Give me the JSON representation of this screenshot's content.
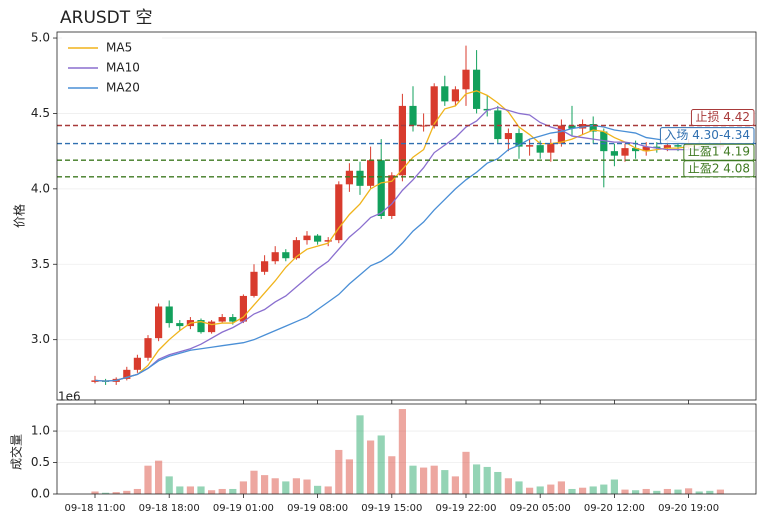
{
  "chart_data": {
    "type": "candlestick",
    "title": "ARUSDT  空",
    "ylabel": "价格",
    "categories": [
      "09-18 11:00",
      null,
      null,
      null,
      null,
      null,
      null,
      "09-18 18:00",
      null,
      null,
      null,
      null,
      null,
      null,
      "09-19 01:00",
      null,
      null,
      null,
      null,
      null,
      null,
      "09-19 08:00",
      null,
      null,
      null,
      null,
      null,
      null,
      "09-19 15:00",
      null,
      null,
      null,
      null,
      null,
      null,
      "09-19 22:00",
      null,
      null,
      null,
      null,
      null,
      null,
      "09-20 05:00",
      null,
      null,
      null,
      null,
      null,
      null,
      "09-20 12:00",
      null,
      null,
      null,
      null,
      null,
      null,
      "09-20 19:00",
      null,
      null,
      null
    ],
    "open": [
      2.72,
      2.73,
      2.72,
      2.74,
      2.8,
      2.88,
      3.01,
      3.22,
      3.11,
      3.09,
      3.13,
      3.05,
      3.12,
      3.15,
      3.12,
      3.29,
      3.45,
      3.52,
      3.58,
      3.54,
      3.66,
      3.69,
      3.65,
      3.66,
      4.03,
      4.12,
      4.02,
      4.19,
      3.82,
      4.09,
      4.55,
      4.42,
      4.42,
      4.68,
      4.58,
      4.66,
      4.79,
      4.53,
      4.52,
      4.33,
      4.37,
      4.28,
      4.29,
      4.24,
      4.3,
      4.42,
      4.4,
      4.43,
      4.38,
      4.25,
      4.22,
      4.27,
      4.25,
      4.28,
      4.27,
      4.29,
      4.28,
      4.3,
      4.29,
      4.28
    ],
    "high": [
      2.76,
      2.74,
      2.75,
      2.82,
      2.9,
      3.03,
      3.24,
      3.26,
      3.13,
      3.15,
      3.14,
      3.13,
      3.17,
      3.17,
      3.3,
      3.5,
      3.56,
      3.62,
      3.6,
      3.68,
      3.72,
      3.7,
      3.68,
      4.05,
      4.17,
      4.18,
      4.28,
      4.33,
      4.11,
      4.63,
      4.68,
      4.5,
      4.7,
      4.75,
      4.68,
      4.95,
      4.92,
      4.62,
      4.55,
      4.4,
      4.4,
      4.33,
      4.32,
      4.33,
      4.46,
      4.55,
      4.46,
      4.48,
      4.4,
      4.3,
      4.3,
      4.32,
      4.31,
      4.31,
      4.32,
      4.31,
      4.33,
      4.32,
      4.31,
      4.32
    ],
    "low": [
      2.71,
      2.7,
      2.7,
      2.73,
      2.78,
      2.86,
      2.99,
      3.08,
      3.06,
      3.07,
      3.04,
      3.04,
      3.11,
      3.1,
      3.11,
      3.28,
      3.43,
      3.5,
      3.52,
      3.53,
      3.63,
      3.63,
      3.62,
      3.64,
      3.98,
      3.96,
      4.0,
      3.8,
      3.8,
      4.05,
      4.38,
      4.38,
      4.4,
      4.55,
      4.55,
      4.55,
      4.5,
      4.48,
      4.3,
      4.25,
      4.2,
      4.22,
      4.2,
      4.18,
      4.28,
      4.35,
      4.36,
      4.3,
      4.01,
      4.15,
      4.18,
      4.2,
      4.22,
      4.24,
      4.25,
      4.25,
      4.26,
      4.26,
      4.25,
      4.26
    ],
    "close": [
      2.73,
      2.72,
      2.74,
      2.8,
      2.88,
      3.01,
      3.22,
      3.11,
      3.09,
      3.13,
      3.05,
      3.12,
      3.15,
      3.12,
      3.29,
      3.45,
      3.52,
      3.58,
      3.54,
      3.66,
      3.69,
      3.65,
      3.66,
      4.03,
      4.12,
      4.02,
      4.19,
      3.82,
      4.09,
      4.55,
      4.42,
      4.42,
      4.68,
      4.58,
      4.66,
      4.79,
      4.53,
      4.52,
      4.33,
      4.37,
      4.28,
      4.29,
      4.24,
      4.3,
      4.42,
      4.4,
      4.43,
      4.38,
      4.25,
      4.22,
      4.27,
      4.25,
      4.28,
      4.27,
      4.29,
      4.28,
      4.3,
      4.29,
      4.28,
      4.29
    ],
    "up_color": "#d83b2d",
    "down_color": "#12a05c",
    "series": [
      {
        "name": "MA5",
        "color": "#f0b41c",
        "values": [
          2.73,
          2.725,
          2.73,
          2.75,
          2.77,
          2.83,
          2.93,
          3.0,
          3.06,
          3.11,
          3.12,
          3.1,
          3.11,
          3.11,
          3.15,
          3.23,
          3.31,
          3.39,
          3.48,
          3.55,
          3.6,
          3.62,
          3.64,
          3.74,
          3.83,
          3.9,
          4.0,
          4.04,
          4.05,
          4.13,
          4.21,
          4.26,
          4.43,
          4.53,
          4.55,
          4.63,
          4.65,
          4.62,
          4.57,
          4.51,
          4.41,
          4.36,
          4.3,
          4.3,
          4.31,
          4.33,
          4.36,
          4.39,
          4.38,
          4.34,
          4.31,
          4.27,
          4.25,
          4.26,
          4.27,
          4.27,
          4.28,
          4.29,
          4.29,
          4.29
        ]
      },
      {
        "name": "MA10",
        "color": "#8a6fcf",
        "values": [
          2.73,
          2.725,
          2.73,
          2.75,
          2.77,
          2.81,
          2.87,
          2.9,
          2.92,
          2.94,
          2.97,
          3.01,
          3.05,
          3.08,
          3.12,
          3.17,
          3.2,
          3.25,
          3.29,
          3.35,
          3.41,
          3.47,
          3.52,
          3.6,
          3.68,
          3.74,
          3.81,
          3.84,
          3.9,
          3.99,
          4.06,
          4.14,
          4.24,
          4.29,
          4.34,
          4.41,
          4.45,
          4.52,
          4.54,
          4.52,
          4.5,
          4.49,
          4.44,
          4.41,
          4.39,
          4.35,
          4.34,
          4.33,
          4.32,
          4.31,
          4.31,
          4.3,
          4.28,
          4.27,
          4.26,
          4.26,
          4.26,
          4.27,
          4.27,
          4.28
        ]
      },
      {
        "name": "MA20",
        "color": "#4a8fd6",
        "values": [
          2.73,
          2.725,
          2.73,
          2.75,
          2.77,
          2.81,
          2.86,
          2.89,
          2.91,
          2.93,
          2.94,
          2.95,
          2.96,
          2.97,
          2.98,
          3.0,
          3.03,
          3.06,
          3.09,
          3.12,
          3.15,
          3.2,
          3.25,
          3.3,
          3.37,
          3.43,
          3.49,
          3.52,
          3.57,
          3.64,
          3.72,
          3.78,
          3.86,
          3.93,
          4.0,
          4.06,
          4.11,
          4.17,
          4.2,
          4.26,
          4.29,
          4.33,
          4.35,
          4.37,
          4.38,
          4.4,
          4.41,
          4.42,
          4.41,
          4.39,
          4.38,
          4.37,
          4.34,
          4.33,
          4.32,
          4.31,
          4.3,
          4.3,
          4.29,
          4.29
        ]
      }
    ],
    "ylim": [
      2.6,
      5.04
    ],
    "yticks": [
      {
        "value": 3,
        "label": "3.0"
      },
      3.5,
      {
        "value": 4,
        "label": "4.0"
      },
      4.5,
      {
        "value": 5,
        "label": "5.0"
      }
    ],
    "grid": true,
    "legend": "upper left",
    "levels": [
      {
        "label": "止损 4.42",
        "value": 4.42,
        "color": "#a83a3a"
      },
      {
        "label": "入场 4.30-4.34",
        "value": 4.3,
        "color": "#2f6fb0"
      },
      {
        "label": "止盈1 4.19",
        "value": 4.19,
        "color": "#3f7a22"
      },
      {
        "label": "止盈2 4.08",
        "value": 4.08,
        "color": "#3f7a22"
      }
    ],
    "volume_ylabel": "成交量",
    "volume_offset": "1e6",
    "volume": [
      0.04,
      0.02,
      0.03,
      0.05,
      0.08,
      0.45,
      0.53,
      0.28,
      0.12,
      0.12,
      0.12,
      0.06,
      0.08,
      0.08,
      0.2,
      0.37,
      0.3,
      0.25,
      0.2,
      0.25,
      0.23,
      0.13,
      0.12,
      0.7,
      0.55,
      1.25,
      0.85,
      0.93,
      0.6,
      1.35,
      0.45,
      0.42,
      0.45,
      0.38,
      0.28,
      0.67,
      0.47,
      0.43,
      0.35,
      0.25,
      0.2,
      0.1,
      0.12,
      0.15,
      0.2,
      0.08,
      0.1,
      0.12,
      0.15,
      0.23,
      0.07,
      0.06,
      0.08,
      0.05,
      0.08,
      0.07,
      0.09,
      0.04,
      0.05,
      0.07
    ],
    "volume_ylim": [
      0,
      1.43
    ],
    "volume_yticks": [
      {
        "value": 0,
        "label": "0.0"
      },
      0.5,
      {
        "value": 1,
        "label": "1.0"
      }
    ]
  }
}
